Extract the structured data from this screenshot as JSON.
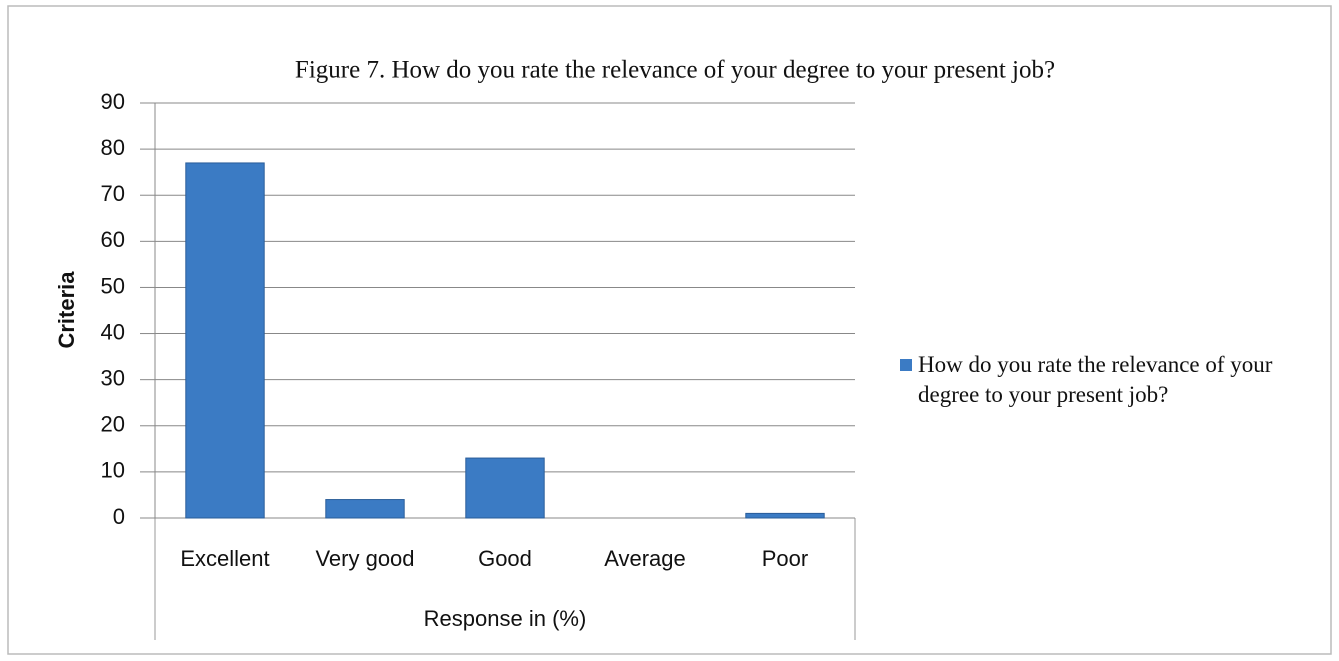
{
  "chart_data": {
    "type": "bar",
    "title": "Figure 7. How do you rate the relevance of your degree to your present job?",
    "x_label": "Response in (%)",
    "y_label": "Criteria",
    "categories": [
      "Excellent",
      "Very good",
      "Good",
      "Average",
      "Poor"
    ],
    "series": [
      {
        "name": "How do you rate the relevance of your degree to your present job?",
        "color": "#3b7bc4",
        "values": [
          77,
          4,
          13,
          0,
          1
        ]
      }
    ],
    "ylim": [
      0,
      90
    ],
    "yticks": [
      0,
      10,
      20,
      30,
      40,
      50,
      60,
      70,
      80,
      90
    ],
    "grid": true,
    "legend": "right"
  }
}
